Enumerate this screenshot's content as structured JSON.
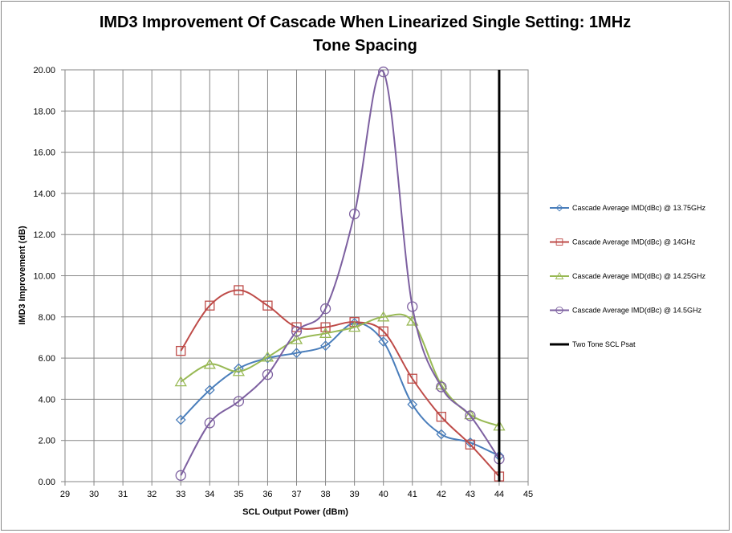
{
  "chart_data": {
    "type": "line",
    "title_line1": "IMD3 Improvement Of Cascade When Linearized Single Setting: 1MHz",
    "title_line2": "Tone Spacing",
    "xlabel": "SCL Output Power (dBm)",
    "ylabel": "IMD3 Improvement  (dB)",
    "xlim": [
      29,
      45
    ],
    "ylim": [
      0,
      20
    ],
    "x_ticks": [
      "29",
      "30",
      "31",
      "32",
      "33",
      "34",
      "35",
      "36",
      "37",
      "38",
      "39",
      "40",
      "41",
      "42",
      "43",
      "44",
      "45"
    ],
    "y_ticks": [
      "0.00",
      "2.00",
      "4.00",
      "6.00",
      "8.00",
      "10.00",
      "12.00",
      "14.00",
      "16.00",
      "18.00",
      "20.00"
    ],
    "grid": true,
    "legend_position": "right",
    "series": [
      {
        "name": "Cascade Average IMD(dBc) @ 13.75GHz",
        "color": "#4A7EBB",
        "marker": "diamond",
        "x": [
          33,
          34,
          35,
          36,
          37,
          38,
          39,
          40,
          41,
          42,
          43,
          44
        ],
        "y": [
          3.0,
          4.45,
          5.5,
          6.0,
          6.25,
          6.6,
          7.7,
          6.8,
          3.75,
          2.3,
          1.9,
          1.25
        ]
      },
      {
        "name": "Cascade Average IMD(dBc) @ 14GHz",
        "color": "#BE4B48",
        "marker": "square",
        "x": [
          33,
          34,
          35,
          36,
          37,
          38,
          39,
          40,
          41,
          42,
          43,
          44
        ],
        "y": [
          6.35,
          8.55,
          9.3,
          8.55,
          7.5,
          7.5,
          7.75,
          7.3,
          5.0,
          3.15,
          1.8,
          0.25
        ]
      },
      {
        "name": "Cascade Average IMD(dBc) @ 14.25GHz",
        "color": "#98B954",
        "marker": "triangle",
        "x": [
          33,
          34,
          35,
          36,
          37,
          38,
          39,
          40,
          41,
          42,
          43,
          44
        ],
        "y": [
          4.85,
          5.7,
          5.35,
          6.05,
          6.9,
          7.2,
          7.5,
          8.0,
          7.8,
          4.7,
          3.25,
          2.7
        ]
      },
      {
        "name": "Cascade Average IMD(dBc) @ 14.5GHz",
        "color": "#7D60A0",
        "marker": "circle",
        "x": [
          33,
          34,
          35,
          36,
          37,
          38,
          39,
          40,
          41,
          42,
          43,
          44
        ],
        "y": [
          0.3,
          2.85,
          3.9,
          5.2,
          7.3,
          8.4,
          13.0,
          19.9,
          8.5,
          4.6,
          3.2,
          1.1
        ]
      },
      {
        "name": "Two Tone SCL Psat",
        "color": "#000000",
        "marker": "none",
        "x": [
          44,
          44
        ],
        "y": [
          0,
          20
        ]
      }
    ]
  }
}
